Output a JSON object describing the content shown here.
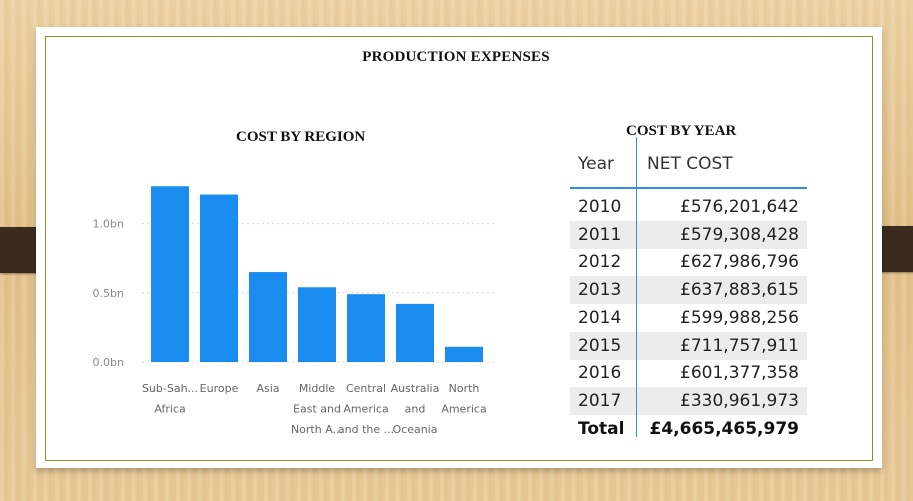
{
  "title": "PRODUCTION EXPENSES",
  "region_title": "COST BY REGION",
  "year_title": "COST BY YEAR",
  "chart_data": {
    "type": "bar",
    "title": "COST BY REGION",
    "categories": [
      [
        "Sub-Sah...",
        "Africa"
      ],
      [
        "Europe"
      ],
      [
        "Asia"
      ],
      [
        "Middle",
        "East and",
        "North A..."
      ],
      [
        "Central",
        "America",
        "and the ..."
      ],
      [
        "Australia",
        "and",
        "Oceania"
      ],
      [
        "North",
        "America"
      ]
    ],
    "values": [
      1.27,
      1.21,
      0.65,
      0.54,
      0.49,
      0.42,
      0.11
    ],
    "y_ticks": [
      "£0.0bn",
      "£0.5bn",
      "£1.0bn"
    ],
    "y_tick_values": [
      0,
      0.5,
      1.0
    ],
    "ylim": [
      0,
      1.38
    ],
    "bar_color": "#1a8cf0",
    "grid": true
  },
  "table": {
    "headers": {
      "year": "Year",
      "cost": "NET COST"
    },
    "rows": [
      {
        "year": "2010",
        "cost": "£576,201,642"
      },
      {
        "year": "2011",
        "cost": "£579,308,428"
      },
      {
        "year": "2012",
        "cost": "£627,986,796"
      },
      {
        "year": "2013",
        "cost": "£637,883,615"
      },
      {
        "year": "2014",
        "cost": "£599,988,256"
      },
      {
        "year": "2015",
        "cost": "£711,757,911"
      },
      {
        "year": "2016",
        "cost": "£601,377,358"
      },
      {
        "year": "2017",
        "cost": "£330,961,973"
      }
    ],
    "total": {
      "label": "Total",
      "cost": "£4,665,465,979"
    },
    "accent": "#2f8ee8"
  }
}
